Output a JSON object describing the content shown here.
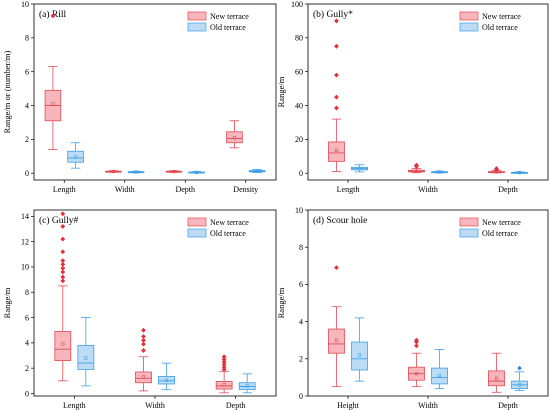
{
  "colors": {
    "new_terrace_fill": "#f7b6bb",
    "new_terrace_stroke": "#e24a55",
    "new_terrace_outlier": "#e0303c",
    "old_terrace_fill": "#bcdcf6",
    "old_terrace_stroke": "#3e9fe6",
    "old_terrace_outlier": "#2f8fe0"
  },
  "chart_data": [
    {
      "type": "box",
      "title": "(a) Rill",
      "ylabel": "Range/m or (number/m)",
      "ylim": [
        -0.4,
        10
      ],
      "yticks": [
        0,
        2,
        4,
        6,
        8,
        10
      ],
      "legend_position": "top-right",
      "categories": [
        "Length",
        "Width",
        "Depth",
        "Density"
      ],
      "series": [
        {
          "name": "New terrace",
          "boxes": [
            {
              "category": "Length",
              "whisker_low": 1.4,
              "q1": 3.1,
              "median": 4.0,
              "q3": 4.9,
              "whisker_high": 6.3,
              "mean": 4.1,
              "outliers": [
                9.3
              ]
            },
            {
              "category": "Width",
              "whisker_low": 0.06,
              "q1": 0.09,
              "median": 0.1,
              "q3": 0.12,
              "whisker_high": 0.15,
              "mean": 0.1,
              "outliers": []
            },
            {
              "category": "Depth",
              "whisker_low": 0.05,
              "q1": 0.08,
              "median": 0.1,
              "q3": 0.12,
              "whisker_high": 0.15,
              "mean": 0.1,
              "outliers": []
            },
            {
              "category": "Density",
              "whisker_low": 1.5,
              "q1": 1.8,
              "median": 2.05,
              "q3": 2.45,
              "whisker_high": 3.1,
              "mean": 2.1,
              "outliers": []
            }
          ]
        },
        {
          "name": "Old terrace",
          "boxes": [
            {
              "category": "Length",
              "whisker_low": 0.3,
              "q1": 0.65,
              "median": 0.9,
              "q3": 1.3,
              "whisker_high": 1.8,
              "mean": 0.95,
              "outliers": []
            },
            {
              "category": "Width",
              "whisker_low": 0.03,
              "q1": 0.06,
              "median": 0.07,
              "q3": 0.09,
              "whisker_high": 0.12,
              "mean": 0.07,
              "outliers": []
            },
            {
              "category": "Depth",
              "whisker_low": 0.02,
              "q1": 0.04,
              "median": 0.05,
              "q3": 0.07,
              "whisker_high": 0.1,
              "mean": 0.05,
              "outliers": []
            },
            {
              "category": "Density",
              "whisker_low": 0.04,
              "q1": 0.08,
              "median": 0.12,
              "q3": 0.16,
              "whisker_high": 0.22,
              "mean": 0.12,
              "outliers": []
            }
          ]
        }
      ]
    },
    {
      "type": "box",
      "title": "(b) Gully*",
      "ylabel": "Range/m",
      "ylim": [
        -4,
        100
      ],
      "yticks": [
        0,
        20,
        40,
        60,
        80,
        100
      ],
      "legend_position": "top-right",
      "categories": [
        "Length",
        "Width",
        "Depth"
      ],
      "series": [
        {
          "name": "New terrace",
          "boxes": [
            {
              "category": "Length",
              "whisker_low": 1.0,
              "q1": 7.0,
              "median": 12.0,
              "q3": 18.5,
              "whisker_high": 32.0,
              "mean": 13.5,
              "outliers": [
                38.5,
                45,
                58,
                75,
                90
              ]
            },
            {
              "category": "Width",
              "whisker_low": 0.3,
              "q1": 0.8,
              "median": 1.2,
              "q3": 1.8,
              "whisker_high": 2.8,
              "mean": 1.3,
              "outliers": [
                4.0,
                4.8
              ]
            },
            {
              "category": "Depth",
              "whisker_low": 0.2,
              "q1": 0.5,
              "median": 0.7,
              "q3": 1.0,
              "whisker_high": 1.6,
              "mean": 0.75,
              "outliers": [
                2.2,
                2.8
              ]
            }
          ]
        },
        {
          "name": "Old terrace",
          "boxes": [
            {
              "category": "Length",
              "whisker_low": 0.8,
              "q1": 2.0,
              "median": 2.7,
              "q3": 3.5,
              "whisker_high": 5.0,
              "mean": 2.8,
              "outliers": []
            },
            {
              "category": "Width",
              "whisker_low": 0.2,
              "q1": 0.5,
              "median": 0.7,
              "q3": 0.9,
              "whisker_high": 1.3,
              "mean": 0.7,
              "outliers": []
            },
            {
              "category": "Depth",
              "whisker_low": 0.1,
              "q1": 0.3,
              "median": 0.4,
              "q3": 0.5,
              "whisker_high": 0.8,
              "mean": 0.4,
              "outliers": []
            }
          ]
        }
      ]
    },
    {
      "type": "box",
      "title": "(c) Gully#",
      "ylabel": "Range/m",
      "ylim": [
        -0.2,
        14.5
      ],
      "yticks": [
        0,
        2,
        4,
        6,
        8,
        10,
        12,
        14
      ],
      "legend_position": "top-right",
      "categories": [
        "Length",
        "Width",
        "Depth"
      ],
      "series": [
        {
          "name": "New terrace",
          "boxes": [
            {
              "category": "Length",
              "whisker_low": 1.0,
              "q1": 2.6,
              "median": 3.5,
              "q3": 4.9,
              "whisker_high": 8.5,
              "mean": 3.9,
              "outliers": [
                8.9,
                9.2,
                9.6,
                9.9,
                10.2,
                10.5,
                11.2,
                12.2,
                13.2,
                14.2
              ]
            },
            {
              "category": "Width",
              "whisker_low": 0.2,
              "q1": 0.85,
              "median": 1.2,
              "q3": 1.7,
              "whisker_high": 2.9,
              "mean": 1.3,
              "outliers": [
                3.4,
                3.9,
                4.2,
                4.5,
                5.0
              ]
            },
            {
              "category": "Depth",
              "whisker_low": 0.05,
              "q1": 0.35,
              "median": 0.6,
              "q3": 0.95,
              "whisker_high": 1.75,
              "mean": 0.7,
              "outliers": [
                1.9,
                2.1,
                2.3,
                2.5,
                2.7,
                2.9
              ]
            }
          ]
        },
        {
          "name": "Old terrace",
          "boxes": [
            {
              "category": "Length",
              "whisker_low": 0.6,
              "q1": 1.9,
              "median": 2.4,
              "q3": 3.8,
              "whisker_high": 6.0,
              "mean": 2.8,
              "outliers": []
            },
            {
              "category": "Width",
              "whisker_low": 0.3,
              "q1": 0.75,
              "median": 1.0,
              "q3": 1.35,
              "whisker_high": 2.4,
              "mean": 1.05,
              "outliers": []
            },
            {
              "category": "Depth",
              "whisker_low": 0.05,
              "q1": 0.3,
              "median": 0.55,
              "q3": 0.85,
              "whisker_high": 1.55,
              "mean": 0.6,
              "outliers": []
            }
          ]
        }
      ]
    },
    {
      "type": "box",
      "title": "(d) Scour hole",
      "ylabel": "Range/m",
      "ylim": [
        0,
        10
      ],
      "yticks": [
        0,
        2,
        4,
        6,
        8,
        10
      ],
      "legend_position": "top-right",
      "categories": [
        "Height",
        "Width",
        "Depth"
      ],
      "series": [
        {
          "name": "New terrace",
          "boxes": [
            {
              "category": "Height",
              "whisker_low": 0.5,
              "q1": 2.3,
              "median": 2.8,
              "q3": 3.6,
              "whisker_high": 4.8,
              "mean": 3.0,
              "outliers": [
                6.9
              ]
            },
            {
              "category": "Width",
              "whisker_low": 0.5,
              "q1": 0.85,
              "median": 1.2,
              "q3": 1.55,
              "whisker_high": 2.3,
              "mean": 1.2,
              "outliers": [
                2.7,
                2.9,
                3.0
              ]
            },
            {
              "category": "Depth",
              "whisker_low": 0.2,
              "q1": 0.55,
              "median": 0.8,
              "q3": 1.35,
              "whisker_high": 2.3,
              "mean": 0.95,
              "outliers": []
            }
          ]
        },
        {
          "name": "Old terrace",
          "boxes": [
            {
              "category": "Height",
              "whisker_low": 0.8,
              "q1": 1.4,
              "median": 2.0,
              "q3": 2.9,
              "whisker_high": 4.2,
              "mean": 2.2,
              "outliers": []
            },
            {
              "category": "Width",
              "whisker_low": 0.4,
              "q1": 0.65,
              "median": 1.0,
              "q3": 1.5,
              "whisker_high": 2.5,
              "mean": 1.1,
              "outliers": []
            },
            {
              "category": "Depth",
              "whisker_low": 0.3,
              "q1": 0.4,
              "median": 0.6,
              "q3": 0.8,
              "whisker_high": 1.3,
              "mean": 0.6,
              "outliers": [
                1.5
              ]
            }
          ]
        }
      ]
    }
  ]
}
